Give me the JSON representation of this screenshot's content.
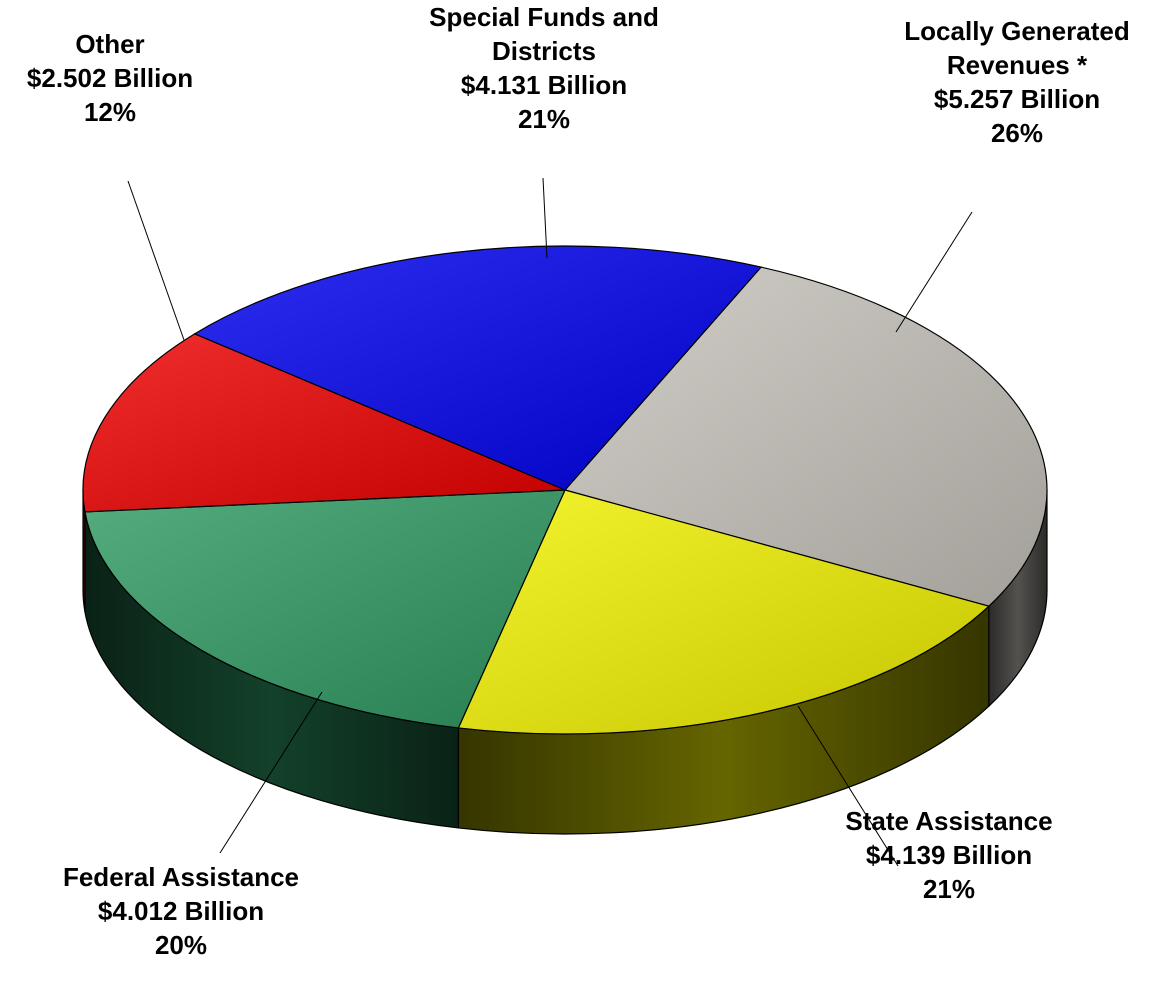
{
  "chart_data": {
    "type": "pie",
    "style": "3d-pie",
    "slices": [
      {
        "name": "Locally Generated Revenues *",
        "lines": [
          "Locally Generated",
          "Revenues *"
        ],
        "value_text": "$5.257 Billion",
        "value": 5.257,
        "percent_text": "26%",
        "percent": 26,
        "color": "#c7c3bc"
      },
      {
        "name": "State Assistance",
        "lines": [
          "State Assistance"
        ],
        "value_text": "$4.139 Billion",
        "value": 4.139,
        "percent_text": "21%",
        "percent": 21,
        "color": "#f0f000"
      },
      {
        "name": "Federal Assistance",
        "lines": [
          "Federal Assistance"
        ],
        "value_text": "$4.012 Billion",
        "value": 4.012,
        "percent_text": "20%",
        "percent": 20,
        "color": "#2e9a63"
      },
      {
        "name": "Other",
        "lines": [
          "Other"
        ],
        "value_text": "$2.502 Billion",
        "value": 2.502,
        "percent_text": "12%",
        "percent": 12,
        "color": "#ee0000"
      },
      {
        "name": "Special Funds and Districts",
        "lines": [
          "Special Funds and",
          "Districts"
        ],
        "value_text": "$4.131 Billion",
        "value": 4.131,
        "percent_text": "21%",
        "percent": 21,
        "color": "#0000ee"
      }
    ]
  }
}
